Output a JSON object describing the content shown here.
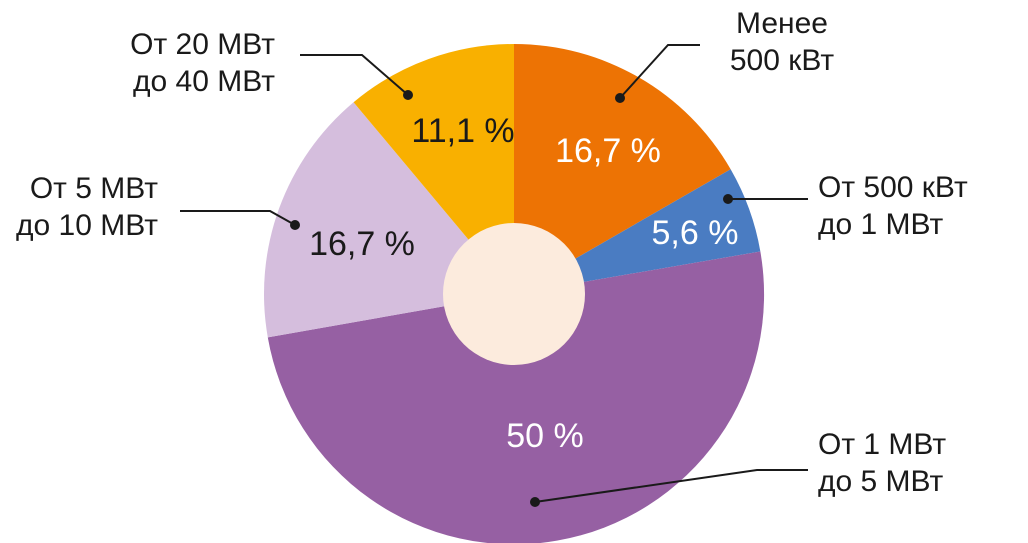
{
  "chart_data": {
    "type": "pie",
    "donut": true,
    "title": "",
    "slices": [
      {
        "label_lines": [
          "Менее",
          "500 кВт"
        ],
        "value": 16.7,
        "value_label": "16,7 %",
        "color": "#ED7304",
        "text_color": "#ffffff"
      },
      {
        "label_lines": [
          "От 500 кВт",
          "до 1 МВт"
        ],
        "value": 5.6,
        "value_label": "5,6 %",
        "color": "#4A7CC2",
        "text_color": "#ffffff"
      },
      {
        "label_lines": [
          "От 1 МВт",
          "до 5 МВт"
        ],
        "value": 50,
        "value_label": "50 %",
        "color": "#9660A3",
        "text_color": "#ffffff"
      },
      {
        "label_lines": [
          "От 5 МВт",
          "до 10 МВт"
        ],
        "value": 16.7,
        "value_label": "16,7 %",
        "color": "#D5BEDD",
        "text_color": "#1a1a1a"
      },
      {
        "label_lines": [
          "От 20 МВт",
          "до 40 МВт"
        ],
        "value": 11.1,
        "value_label": "11,1 %",
        "color": "#F9B000",
        "text_color": "#1a1a1a"
      }
    ],
    "center_color": "#FCEBDD"
  }
}
